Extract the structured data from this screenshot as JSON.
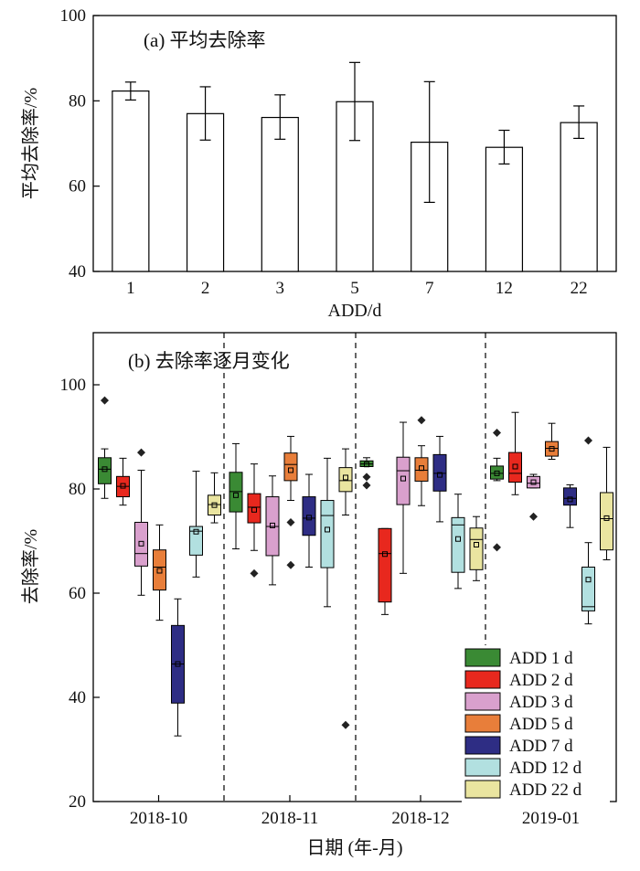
{
  "chart_data": [
    {
      "type": "bar",
      "title": "(a) 平均去除率",
      "xlabel": "ADD/d",
      "ylabel": "平均去除率/%",
      "ylim": [
        40,
        100
      ],
      "yticks": [
        40,
        60,
        80,
        100
      ],
      "categories": [
        "1",
        "2",
        "3",
        "5",
        "7",
        "12",
        "22"
      ],
      "values": [
        82.3,
        77.0,
        76.1,
        79.8,
        70.3,
        69.1,
        74.9
      ],
      "error_low": [
        80.2,
        70.8,
        71.0,
        70.7,
        56.2,
        65.2,
        71.2
      ],
      "error_high": [
        84.4,
        83.3,
        81.4,
        89.0,
        84.5,
        73.1,
        78.8
      ],
      "bar_fill": "#ffffff",
      "bar_stroke": "#000000"
    },
    {
      "type": "box",
      "title": "(b) 去除率逐月变化",
      "xlabel": "日期 (年-月)",
      "ylabel": "去除率/%",
      "ylim": [
        20,
        110
      ],
      "yticks": [
        20,
        40,
        60,
        80,
        100
      ],
      "months": [
        "2018-10",
        "2018-11",
        "2018-12",
        "2019-01"
      ],
      "legend_position": "bottom-right",
      "series": [
        {
          "name": "ADD 1 d",
          "color": "#3a8a34",
          "stats": [
            {
              "month": "2018-10",
              "whisker_low": 78.2,
              "q1": 81.0,
              "median": 83.8,
              "q3": 86.0,
              "whisker_high": 87.7,
              "mean": 83.8,
              "outliers": [
                97.0
              ]
            },
            {
              "month": "2018-11",
              "whisker_low": 68.5,
              "q1": 75.6,
              "median": 79.5,
              "q3": 83.2,
              "whisker_high": 88.7,
              "mean": 78.8,
              "outliers": []
            },
            {
              "month": "2018-12",
              "whisker_low": 84.3,
              "q1": 84.3,
              "median": 84.8,
              "q3": 85.4,
              "whisker_high": 86.0,
              "mean": 84.7,
              "outliers": [
                82.3,
                80.7
              ]
            },
            {
              "month": "2019-01",
              "whisker_low": 81.6,
              "q1": 81.9,
              "median": 83.0,
              "q3": 84.4,
              "whisker_high": 85.9,
              "mean": 83.0,
              "outliers": [
                90.8,
                68.8
              ]
            }
          ]
        },
        {
          "name": "ADD 2 d",
          "color": "#e8281e",
          "stats": [
            {
              "month": "2018-10",
              "whisker_low": 76.9,
              "q1": 78.5,
              "median": 80.5,
              "q3": 82.4,
              "whisker_high": 85.9,
              "mean": 80.6,
              "outliers": []
            },
            {
              "month": "2018-11",
              "whisker_low": 68.2,
              "q1": 73.5,
              "median": 76.5,
              "q3": 79.1,
              "whisker_high": 84.8,
              "mean": 76.0,
              "outliers": [
                63.8
              ]
            },
            {
              "month": "2018-12",
              "whisker_low": 55.9,
              "q1": 58.3,
              "median": 67.6,
              "q3": 72.4,
              "whisker_high": 72.4,
              "mean": 67.5,
              "outliers": []
            },
            {
              "month": "2019-01",
              "whisker_low": 78.9,
              "q1": 81.3,
              "median": 83.0,
              "q3": 87.0,
              "whisker_high": 94.7,
              "mean": 84.3,
              "outliers": []
            }
          ]
        },
        {
          "name": "ADD 3 d",
          "color": "#d9a0cd",
          "stats": [
            {
              "month": "2018-10",
              "whisker_low": 59.6,
              "q1": 65.2,
              "median": 67.6,
              "q3": 73.6,
              "whisker_high": 83.6,
              "mean": 69.5,
              "outliers": [
                87.0
              ]
            },
            {
              "month": "2018-11",
              "whisker_low": 61.6,
              "q1": 67.2,
              "median": 72.8,
              "q3": 78.5,
              "whisker_high": 82.5,
              "mean": 73.0,
              "outliers": []
            },
            {
              "month": "2018-12",
              "whisker_low": 63.8,
              "q1": 77.0,
              "median": 83.5,
              "q3": 86.1,
              "whisker_high": 92.8,
              "mean": 82.0,
              "outliers": []
            },
            {
              "month": "2019-01",
              "whisker_low": 80.2,
              "q1": 80.2,
              "median": 81.1,
              "q3": 82.4,
              "whisker_high": 82.8,
              "mean": 81.3,
              "outliers": [
                74.7
              ]
            }
          ]
        },
        {
          "name": "ADD 5 d",
          "color": "#e87e3a",
          "stats": [
            {
              "month": "2018-10",
              "whisker_low": 54.8,
              "q1": 60.6,
              "median": 65.0,
              "q3": 68.3,
              "whisker_high": 73.1,
              "mean": 64.3,
              "outliers": []
            },
            {
              "month": "2018-11",
              "whisker_low": 77.8,
              "q1": 81.6,
              "median": 84.7,
              "q3": 86.9,
              "whisker_high": 90.1,
              "mean": 83.6,
              "outliers": [
                73.6,
                65.4
              ]
            },
            {
              "month": "2018-12",
              "whisker_low": 76.8,
              "q1": 81.5,
              "median": 83.6,
              "q3": 86.0,
              "whisker_high": 88.3,
              "mean": 84.0,
              "outliers": [
                93.2
              ]
            },
            {
              "month": "2019-01",
              "whisker_low": 85.7,
              "q1": 86.3,
              "median": 87.8,
              "q3": 89.1,
              "whisker_high": 92.6,
              "mean": 87.7,
              "outliers": []
            }
          ]
        },
        {
          "name": "ADD 7 d",
          "color": "#2e2d84",
          "stats": [
            {
              "month": "2018-10",
              "whisker_low": 32.6,
              "q1": 38.9,
              "median": 46.4,
              "q3": 53.8,
              "whisker_high": 58.9,
              "mean": 46.4,
              "outliers": []
            },
            {
              "month": "2018-11",
              "whisker_low": 65.0,
              "q1": 71.1,
              "median": 74.4,
              "q3": 78.5,
              "whisker_high": 82.8,
              "mean": 74.5,
              "outliers": []
            },
            {
              "month": "2018-12",
              "whisker_low": 73.7,
              "q1": 79.6,
              "median": 83.0,
              "q3": 86.6,
              "whisker_high": 90.1,
              "mean": 82.7,
              "outliers": []
            },
            {
              "month": "2019-01",
              "whisker_low": 72.6,
              "q1": 76.9,
              "median": 78.2,
              "q3": 80.2,
              "whisker_high": 80.8,
              "mean": 78.0,
              "outliers": []
            }
          ]
        },
        {
          "name": "ADD 12 d",
          "color": "#b2e0e0",
          "stats": [
            {
              "month": "2018-10",
              "whisker_low": 63.1,
              "q1": 67.3,
              "median": 71.9,
              "q3": 72.8,
              "whisker_high": 83.4,
              "mean": 71.8,
              "outliers": []
            },
            {
              "month": "2018-11",
              "whisker_low": 57.4,
              "q1": 64.9,
              "median": 74.9,
              "q3": 77.8,
              "whisker_high": 85.9,
              "mean": 72.2,
              "outliers": []
            },
            {
              "month": "2018-12",
              "whisker_low": 60.9,
              "q1": 64.0,
              "median": 73.1,
              "q3": 74.5,
              "whisker_high": 79.0,
              "mean": 70.4,
              "outliers": []
            },
            {
              "month": "2019-01",
              "whisker_low": 54.1,
              "q1": 56.6,
              "median": 57.4,
              "q3": 65.0,
              "whisker_high": 69.7,
              "mean": 62.6,
              "outliers": [
                89.3
              ]
            }
          ]
        },
        {
          "name": "ADD 22 d",
          "color": "#eae5a0",
          "stats": [
            {
              "month": "2018-10",
              "whisker_low": 73.5,
              "q1": 75.0,
              "median": 77.0,
              "q3": 78.8,
              "whisker_high": 83.1,
              "mean": 76.9,
              "outliers": []
            },
            {
              "month": "2018-11",
              "whisker_low": 75.0,
              "q1": 79.5,
              "median": 81.6,
              "q3": 84.1,
              "whisker_high": 87.7,
              "mean": 82.2,
              "outliers": [
                34.7
              ]
            },
            {
              "month": "2018-12",
              "whisker_low": 62.4,
              "q1": 64.5,
              "median": 70.3,
              "q3": 72.5,
              "whisker_high": 74.7,
              "mean": 69.3,
              "outliers": []
            },
            {
              "month": "2019-01",
              "whisker_low": 66.4,
              "q1": 68.3,
              "median": 74.3,
              "q3": 79.3,
              "whisker_high": 88.0,
              "mean": 74.4,
              "outliers": []
            }
          ]
        }
      ]
    }
  ]
}
